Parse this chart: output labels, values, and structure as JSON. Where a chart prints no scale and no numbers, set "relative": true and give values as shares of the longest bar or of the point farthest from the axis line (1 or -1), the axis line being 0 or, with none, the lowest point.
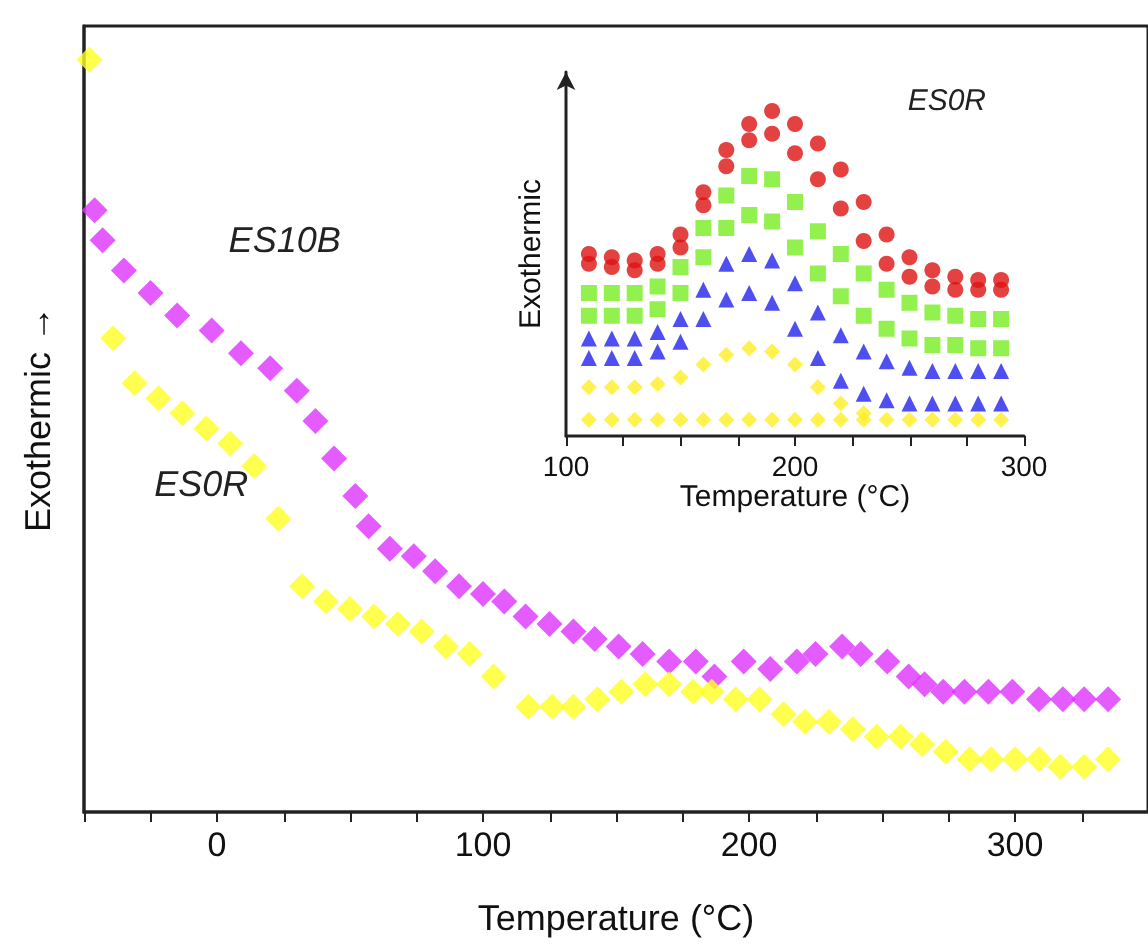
{
  "chart_data": [
    {
      "type": "scatter",
      "xlabel": "Temperature (°C)",
      "ylabel": "Exothermic →",
      "relative": true,
      "xlim": [
        -50,
        350
      ],
      "xticks": [
        {
          "value": -50,
          "label": null
        },
        {
          "value": -25,
          "label": null
        },
        0,
        {
          "value": 25,
          "label": null
        },
        {
          "value": 50,
          "label": null
        },
        {
          "value": 75,
          "label": null
        },
        100,
        {
          "value": 125,
          "label": null
        },
        {
          "value": 150,
          "label": null
        },
        {
          "value": 175,
          "label": null
        },
        200,
        {
          "value": 225,
          "label": null
        },
        {
          "value": 250,
          "label": null
        },
        {
          "value": 275,
          "label": null
        },
        300,
        {
          "value": 325,
          "label": null
        }
      ],
      "tick_labels": "x",
      "grid": false,
      "legend": false,
      "marker": "diamond",
      "series": [
        {
          "name": "ES10B",
          "color": "#dd33ff",
          "x": [
            -46,
            -43,
            -35,
            -25,
            -15,
            -2,
            9,
            20,
            30,
            37,
            44,
            52,
            57,
            65,
            74,
            82,
            91,
            100,
            108,
            116,
            125,
            134,
            142,
            151,
            160,
            170,
            180,
            187,
            198,
            208,
            218,
            225,
            235,
            242,
            252,
            260,
            266,
            273,
            281,
            290,
            299,
            309,
            318,
            326,
            335
          ],
          "values": [
            0.8,
            0.76,
            0.72,
            0.69,
            0.66,
            0.64,
            0.61,
            0.59,
            0.56,
            0.52,
            0.47,
            0.42,
            0.38,
            0.35,
            0.34,
            0.32,
            0.3,
            0.29,
            0.28,
            0.26,
            0.25,
            0.24,
            0.23,
            0.22,
            0.21,
            0.2,
            0.2,
            0.18,
            0.2,
            0.19,
            0.2,
            0.21,
            0.22,
            0.21,
            0.2,
            0.18,
            0.17,
            0.16,
            0.16,
            0.16,
            0.16,
            0.15,
            0.15,
            0.15,
            0.15
          ]
        },
        {
          "name": "ES0R",
          "color": "#ffff22",
          "x": [
            -48,
            -39,
            -31,
            -22,
            -13,
            -4,
            5,
            14,
            23,
            32,
            41,
            50,
            59,
            68,
            77,
            86,
            95,
            104,
            117,
            126,
            134,
            143,
            152,
            161,
            170,
            179,
            186,
            195,
            204,
            213,
            221,
            230,
            239,
            248,
            257,
            265,
            274,
            283,
            291,
            300,
            309,
            317,
            326,
            335
          ],
          "values": [
            1.0,
            0.63,
            0.57,
            0.55,
            0.53,
            0.51,
            0.49,
            0.46,
            0.39,
            0.3,
            0.28,
            0.27,
            0.26,
            0.25,
            0.24,
            0.22,
            0.21,
            0.18,
            0.14,
            0.14,
            0.14,
            0.15,
            0.16,
            0.17,
            0.17,
            0.16,
            0.16,
            0.15,
            0.15,
            0.13,
            0.12,
            0.12,
            0.11,
            0.1,
            0.1,
            0.09,
            0.08,
            0.07,
            0.07,
            0.07,
            0.07,
            0.06,
            0.06,
            0.07
          ]
        }
      ]
    },
    {
      "type": "scatter",
      "title": "ES0R",
      "xlabel": "Temperature (°C)",
      "ylabel": "Exothermic",
      "relative": true,
      "xlim": [
        100,
        300
      ],
      "xticks": [
        100,
        {
          "value": 125,
          "label": null
        },
        {
          "value": 150,
          "label": null
        },
        {
          "value": 175,
          "label": null
        },
        200,
        {
          "value": 225,
          "label": null
        },
        {
          "value": 250,
          "label": null
        },
        {
          "value": 275,
          "label": null
        },
        300
      ],
      "tick_labels": "x",
      "grid": false,
      "legend": false,
      "series": [
        {
          "color": "#dd1111",
          "marker": "circle",
          "x": [
            110,
            120,
            130,
            140,
            150,
            160,
            170,
            180,
            190,
            200,
            210,
            220,
            230,
            240,
            250,
            260,
            270,
            280,
            290
          ],
          "values": [
            0.56,
            0.55,
            0.54,
            0.56,
            0.62,
            0.75,
            0.88,
            0.96,
            1.0,
            0.96,
            0.9,
            0.82,
            0.72,
            0.62,
            0.55,
            0.51,
            0.49,
            0.48,
            0.48
          ]
        },
        {
          "color": "#dd1111",
          "marker": "circle",
          "x": [
            110,
            120,
            130,
            140,
            150,
            160,
            170,
            180,
            190,
            200,
            210,
            220,
            230,
            240,
            250,
            260,
            270,
            280,
            290
          ],
          "values": [
            0.53,
            0.52,
            0.51,
            0.53,
            0.58,
            0.71,
            0.83,
            0.91,
            0.93,
            0.87,
            0.79,
            0.7,
            0.6,
            0.53,
            0.49,
            0.46,
            0.45,
            0.45,
            0.45
          ]
        },
        {
          "color": "#77ee22",
          "marker": "square",
          "x": [
            110,
            120,
            130,
            140,
            150,
            160,
            170,
            180,
            190,
            200,
            210,
            220,
            230,
            240,
            250,
            260,
            270,
            280,
            290
          ],
          "values": [
            0.44,
            0.44,
            0.44,
            0.46,
            0.52,
            0.64,
            0.74,
            0.8,
            0.79,
            0.72,
            0.63,
            0.56,
            0.5,
            0.45,
            0.41,
            0.38,
            0.37,
            0.36,
            0.36
          ]
        },
        {
          "color": "#77ee22",
          "marker": "square",
          "x": [
            110,
            120,
            130,
            140,
            150,
            160,
            170,
            180,
            190,
            200,
            210,
            220,
            230,
            240,
            250,
            260,
            270,
            280,
            290
          ],
          "values": [
            0.37,
            0.37,
            0.37,
            0.39,
            0.44,
            0.55,
            0.64,
            0.68,
            0.66,
            0.58,
            0.5,
            0.43,
            0.37,
            0.33,
            0.3,
            0.28,
            0.28,
            0.27,
            0.27
          ]
        },
        {
          "color": "#2222ee",
          "marker": "triangle",
          "x": [
            110,
            120,
            130,
            140,
            150,
            160,
            170,
            180,
            190,
            200,
            210,
            220,
            230,
            240,
            250,
            260,
            270,
            280,
            290
          ],
          "values": [
            0.3,
            0.3,
            0.3,
            0.32,
            0.36,
            0.45,
            0.53,
            0.56,
            0.54,
            0.47,
            0.38,
            0.31,
            0.26,
            0.23,
            0.21,
            0.2,
            0.2,
            0.2,
            0.2
          ]
        },
        {
          "color": "#2222ee",
          "marker": "triangle",
          "x": [
            110,
            120,
            130,
            140,
            150,
            160,
            170,
            180,
            190,
            200,
            210,
            220,
            230,
            240,
            250,
            260,
            270,
            280,
            290
          ],
          "values": [
            0.24,
            0.24,
            0.24,
            0.26,
            0.29,
            0.36,
            0.42,
            0.44,
            0.41,
            0.33,
            0.24,
            0.17,
            0.13,
            0.11,
            0.1,
            0.1,
            0.1,
            0.1,
            0.1
          ]
        },
        {
          "color": "#ffee22",
          "marker": "diamond",
          "x": [
            110,
            120,
            130,
            140,
            150,
            160,
            170,
            180,
            190,
            200,
            210,
            220,
            230
          ],
          "values": [
            0.15,
            0.15,
            0.15,
            0.16,
            0.18,
            0.22,
            0.25,
            0.27,
            0.26,
            0.22,
            0.15,
            0.1,
            0.07
          ]
        },
        {
          "color": "#ffee22",
          "marker": "diamond",
          "x": [
            110,
            120,
            130,
            140,
            150,
            160,
            170,
            180,
            190,
            200,
            210,
            220,
            230,
            240,
            250,
            260,
            270,
            280,
            290
          ],
          "values": [
            0.05,
            0.05,
            0.05,
            0.05,
            0.05,
            0.05,
            0.05,
            0.05,
            0.05,
            0.05,
            0.05,
            0.05,
            0.05,
            0.05,
            0.05,
            0.05,
            0.05,
            0.05,
            0.05
          ]
        }
      ]
    }
  ]
}
